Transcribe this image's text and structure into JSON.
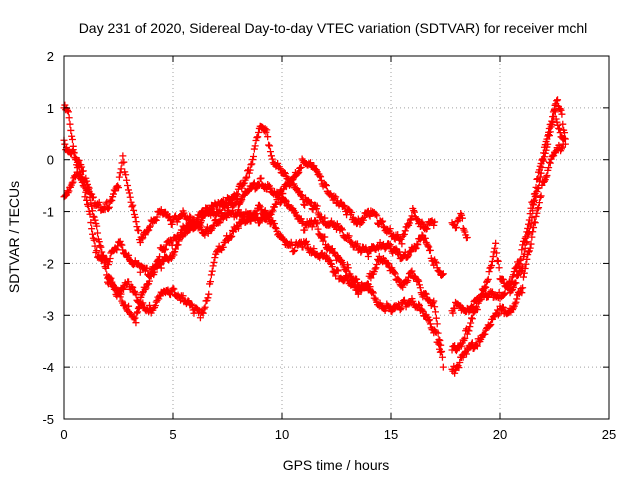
{
  "chart_data": {
    "type": "scatter",
    "title": "Day 231 of 2020, Sidereal Day-to-day VTEC variation (SDTVAR) for receiver mchl",
    "xlabel": "GPS time / hours",
    "ylabel": "SDTVAR / TECUs",
    "xlim": [
      0,
      25
    ],
    "ylim": [
      -5,
      2
    ],
    "xticks": [
      0,
      5,
      10,
      15,
      20,
      25
    ],
    "yticks": [
      -5,
      -4,
      -3,
      -2,
      -1,
      0,
      1,
      2
    ],
    "grid": true,
    "marker": "+",
    "color": "#ff0000",
    "series": [
      {
        "name": "track-1",
        "points": [
          [
            0.0,
            1.0
          ],
          [
            0.2,
            0.9
          ],
          [
            0.5,
            0.1
          ],
          [
            1.0,
            -0.7
          ],
          [
            1.5,
            -1.8
          ],
          [
            2.0,
            -2.0
          ],
          [
            2.5,
            -1.6
          ],
          [
            3.0,
            -1.9
          ],
          [
            3.5,
            -2.1
          ],
          [
            4.0,
            -2.2
          ],
          [
            4.5,
            -1.7
          ],
          [
            5.0,
            -1.6
          ],
          [
            5.5,
            -1.4
          ],
          [
            6.0,
            -1.2
          ],
          [
            6.5,
            -1.0
          ],
          [
            7.0,
            -1.0
          ],
          [
            7.5,
            -0.9
          ],
          [
            8.0,
            -0.6
          ],
          [
            8.5,
            -0.2
          ],
          [
            9.0,
            0.6
          ],
          [
            9.3,
            0.5
          ],
          [
            9.6,
            0.0
          ],
          [
            10.0,
            -0.3
          ],
          [
            10.5,
            -0.4
          ],
          [
            11.0,
            -0.8
          ],
          [
            11.5,
            -0.9
          ],
          [
            12.0,
            -1.2
          ],
          [
            12.5,
            -1.3
          ],
          [
            13.0,
            -1.5
          ],
          [
            13.5,
            -1.7
          ],
          [
            14.0,
            -1.8
          ],
          [
            14.5,
            -1.6
          ],
          [
            15.0,
            -1.7
          ],
          [
            15.5,
            -1.9
          ],
          [
            16.0,
            -1.7
          ],
          [
            16.5,
            -1.5
          ],
          [
            17.0,
            -2.0
          ],
          [
            17.4,
            -2.2
          ]
        ]
      },
      {
        "name": "track-2",
        "points": [
          [
            0.0,
            0.3
          ],
          [
            0.5,
            0.1
          ],
          [
            1.0,
            -0.4
          ],
          [
            1.5,
            -1.3
          ],
          [
            2.0,
            -2.3
          ],
          [
            2.5,
            -2.6
          ],
          [
            3.0,
            -2.9
          ],
          [
            3.3,
            -3.1
          ],
          [
            3.6,
            -2.6
          ],
          [
            4.0,
            -2.2
          ],
          [
            4.5,
            -2.0
          ],
          [
            5.0,
            -1.8
          ],
          [
            5.5,
            -1.3
          ],
          [
            6.0,
            -1.3
          ],
          [
            6.5,
            -1.0
          ],
          [
            7.0,
            -0.9
          ],
          [
            7.5,
            -0.8
          ],
          [
            8.0,
            -0.8
          ],
          [
            8.5,
            -0.6
          ],
          [
            9.0,
            -0.4
          ],
          [
            9.5,
            -0.6
          ],
          [
            10.0,
            -0.8
          ],
          [
            10.5,
            -0.9
          ],
          [
            11.0,
            -1.3
          ],
          [
            11.5,
            -1.2
          ],
          [
            12.0,
            -1.6
          ],
          [
            12.5,
            -1.9
          ],
          [
            13.0,
            -2.1
          ],
          [
            13.5,
            -2.4
          ],
          [
            14.0,
            -2.5
          ],
          [
            14.5,
            -2.8
          ],
          [
            15.0,
            -2.9
          ],
          [
            15.5,
            -2.8
          ],
          [
            16.0,
            -2.7
          ],
          [
            16.5,
            -3.0
          ],
          [
            17.0,
            -3.3
          ],
          [
            17.3,
            -3.7
          ]
        ]
      },
      {
        "name": "track-3",
        "points": [
          [
            0.0,
            -0.7
          ],
          [
            0.3,
            -0.6
          ],
          [
            0.6,
            -0.2
          ],
          [
            1.0,
            -0.5
          ],
          [
            1.5,
            -0.9
          ],
          [
            2.0,
            -0.9
          ],
          [
            2.5,
            -0.5
          ],
          [
            2.7,
            0.0
          ],
          [
            3.0,
            -0.6
          ],
          [
            3.5,
            -1.6
          ],
          [
            4.0,
            -1.2
          ],
          [
            4.5,
            -1.0
          ],
          [
            5.0,
            -1.2
          ],
          [
            5.5,
            -1.0
          ],
          [
            6.0,
            -1.3
          ],
          [
            6.5,
            -1.4
          ],
          [
            7.0,
            -1.2
          ],
          [
            7.5,
            -1.1
          ],
          [
            8.0,
            -1.0
          ],
          [
            8.5,
            -1.1
          ],
          [
            9.0,
            -1.2
          ],
          [
            9.5,
            -1.0
          ],
          [
            10.0,
            -0.6
          ],
          [
            10.5,
            -0.4
          ],
          [
            11.0,
            0.0
          ],
          [
            11.5,
            -0.2
          ],
          [
            12.0,
            -0.5
          ],
          [
            12.5,
            -0.8
          ],
          [
            13.0,
            -1.0
          ],
          [
            13.5,
            -1.2
          ],
          [
            14.0,
            -1.0
          ],
          [
            14.5,
            -1.2
          ],
          [
            15.0,
            -1.4
          ],
          [
            15.5,
            -1.6
          ],
          [
            16.0,
            -1.0
          ],
          [
            16.5,
            -1.3
          ],
          [
            17.0,
            -1.2
          ]
        ]
      },
      {
        "name": "track-4",
        "points": [
          [
            2.0,
            -2.3
          ],
          [
            2.5,
            -2.5
          ],
          [
            3.0,
            -2.4
          ],
          [
            3.5,
            -2.8
          ],
          [
            4.0,
            -2.9
          ],
          [
            4.5,
            -2.6
          ],
          [
            5.0,
            -2.5
          ],
          [
            5.5,
            -2.7
          ],
          [
            6.0,
            -2.9
          ],
          [
            6.3,
            -3.0
          ],
          [
            6.6,
            -2.6
          ],
          [
            7.0,
            -1.8
          ],
          [
            7.5,
            -1.5
          ],
          [
            8.0,
            -1.3
          ],
          [
            8.5,
            -1.1
          ],
          [
            9.0,
            -0.9
          ],
          [
            9.5,
            -1.2
          ],
          [
            10.0,
            -1.5
          ],
          [
            10.5,
            -1.7
          ],
          [
            11.0,
            -1.6
          ],
          [
            11.5,
            -1.8
          ],
          [
            12.0,
            -1.9
          ],
          [
            12.5,
            -2.2
          ],
          [
            13.0,
            -2.3
          ],
          [
            13.5,
            -2.6
          ],
          [
            14.0,
            -2.3
          ],
          [
            14.5,
            -1.9
          ],
          [
            15.0,
            -2.1
          ],
          [
            15.5,
            -2.4
          ],
          [
            16.0,
            -2.2
          ],
          [
            16.5,
            -2.6
          ],
          [
            17.0,
            -2.8
          ],
          [
            17.4,
            -4.0
          ]
        ]
      },
      {
        "name": "track-5",
        "points": [
          [
            17.8,
            -1.2
          ],
          [
            18.0,
            -1.3
          ],
          [
            18.2,
            -1.1
          ],
          [
            18.5,
            -1.5
          ]
        ]
      },
      {
        "name": "track-6",
        "points": [
          [
            17.8,
            -3.6
          ],
          [
            18.0,
            -3.7
          ],
          [
            18.5,
            -3.3
          ],
          [
            19.0,
            -2.8
          ],
          [
            19.5,
            -2.2
          ],
          [
            19.8,
            -1.6
          ],
          [
            20.0,
            -2.3
          ],
          [
            20.5,
            -2.5
          ],
          [
            21.0,
            -2.1
          ],
          [
            21.5,
            -1.0
          ],
          [
            22.0,
            0.0
          ],
          [
            22.3,
            0.6
          ],
          [
            22.6,
            1.1
          ],
          [
            22.8,
            1.0
          ],
          [
            23.0,
            0.4
          ]
        ]
      },
      {
        "name": "track-7",
        "points": [
          [
            17.8,
            -4.1
          ],
          [
            18.0,
            -4.0
          ],
          [
            18.5,
            -3.7
          ],
          [
            19.0,
            -3.5
          ],
          [
            19.5,
            -3.2
          ],
          [
            20.0,
            -2.9
          ],
          [
            20.5,
            -2.9
          ],
          [
            21.0,
            -2.5
          ],
          [
            21.5,
            -1.4
          ],
          [
            22.0,
            -0.4
          ],
          [
            22.5,
            0.1
          ],
          [
            22.9,
            0.3
          ]
        ]
      },
      {
        "name": "track-8",
        "points": [
          [
            17.8,
            -2.9
          ],
          [
            18.0,
            -2.8
          ],
          [
            18.5,
            -2.9
          ],
          [
            19.0,
            -2.7
          ],
          [
            19.5,
            -2.6
          ],
          [
            20.0,
            -2.6
          ],
          [
            20.5,
            -2.4
          ],
          [
            21.0,
            -1.8
          ],
          [
            21.5,
            -0.8
          ],
          [
            22.0,
            0.1
          ],
          [
            22.5,
            0.9
          ],
          [
            22.8,
            0.5
          ],
          [
            23.0,
            0.3
          ]
        ]
      }
    ]
  }
}
